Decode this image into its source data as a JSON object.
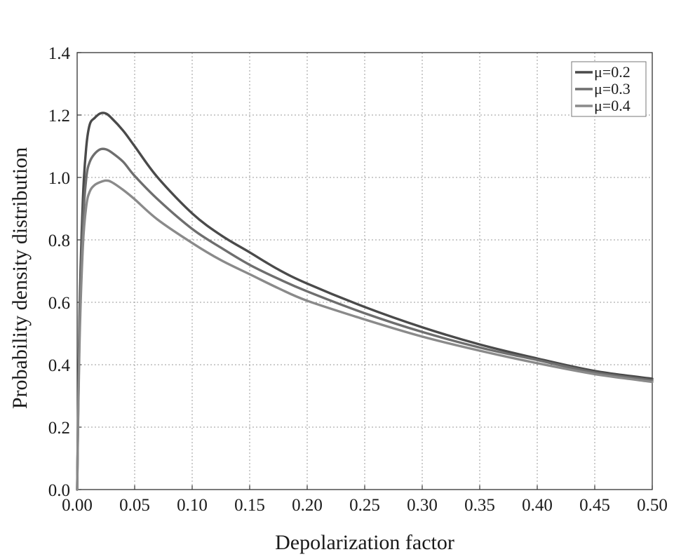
{
  "chart_data": {
    "type": "line",
    "xlabel": "Depolarization factor",
    "ylabel": "Probability density distribution",
    "xlim": [
      0.0,
      0.5
    ],
    "ylim": [
      0.0,
      1.4
    ],
    "xticks": [
      "0.00",
      "0.05",
      "0.10",
      "0.15",
      "0.20",
      "0.25",
      "0.30",
      "0.35",
      "0.40",
      "0.45",
      "0.50"
    ],
    "yticks": [
      "0.0",
      "0.2",
      "0.4",
      "0.6",
      "0.8",
      "1.0",
      "1.2",
      "1.4"
    ],
    "grid": true,
    "legend_position": "top-right",
    "series": [
      {
        "name": "μ=0.2",
        "color": "#4a4a4a",
        "x": [
          0.0,
          0.002,
          0.005,
          0.008,
          0.011,
          0.015,
          0.02,
          0.025,
          0.03,
          0.04,
          0.05,
          0.07,
          0.1,
          0.125,
          0.15,
          0.175,
          0.2,
          0.25,
          0.3,
          0.35,
          0.4,
          0.45,
          0.5
        ],
        "y": [
          0.0,
          0.55,
          0.93,
          1.1,
          1.17,
          1.19,
          1.205,
          1.205,
          1.19,
          1.15,
          1.1,
          1.0,
          0.885,
          0.815,
          0.76,
          0.705,
          0.66,
          0.585,
          0.52,
          0.465,
          0.42,
          0.38,
          0.355
        ]
      },
      {
        "name": "μ=0.3",
        "color": "#6e6e6e",
        "x": [
          0.0,
          0.002,
          0.005,
          0.008,
          0.011,
          0.015,
          0.02,
          0.025,
          0.03,
          0.04,
          0.05,
          0.07,
          0.1,
          0.125,
          0.15,
          0.175,
          0.2,
          0.25,
          0.3,
          0.35,
          0.4,
          0.45,
          0.5
        ],
        "y": [
          0.0,
          0.5,
          0.85,
          1.0,
          1.05,
          1.075,
          1.09,
          1.09,
          1.08,
          1.05,
          1.005,
          0.93,
          0.835,
          0.775,
          0.72,
          0.675,
          0.635,
          0.565,
          0.505,
          0.455,
          0.415,
          0.375,
          0.35
        ]
      },
      {
        "name": "μ=0.4",
        "color": "#8a8a8a",
        "x": [
          0.0,
          0.002,
          0.005,
          0.008,
          0.011,
          0.015,
          0.02,
          0.025,
          0.03,
          0.04,
          0.05,
          0.07,
          0.1,
          0.125,
          0.15,
          0.175,
          0.2,
          0.25,
          0.3,
          0.35,
          0.4,
          0.45,
          0.5
        ],
        "y": [
          0.0,
          0.46,
          0.78,
          0.91,
          0.955,
          0.975,
          0.985,
          0.99,
          0.985,
          0.96,
          0.93,
          0.865,
          0.79,
          0.735,
          0.69,
          0.645,
          0.605,
          0.545,
          0.49,
          0.445,
          0.405,
          0.37,
          0.345
        ]
      }
    ]
  }
}
